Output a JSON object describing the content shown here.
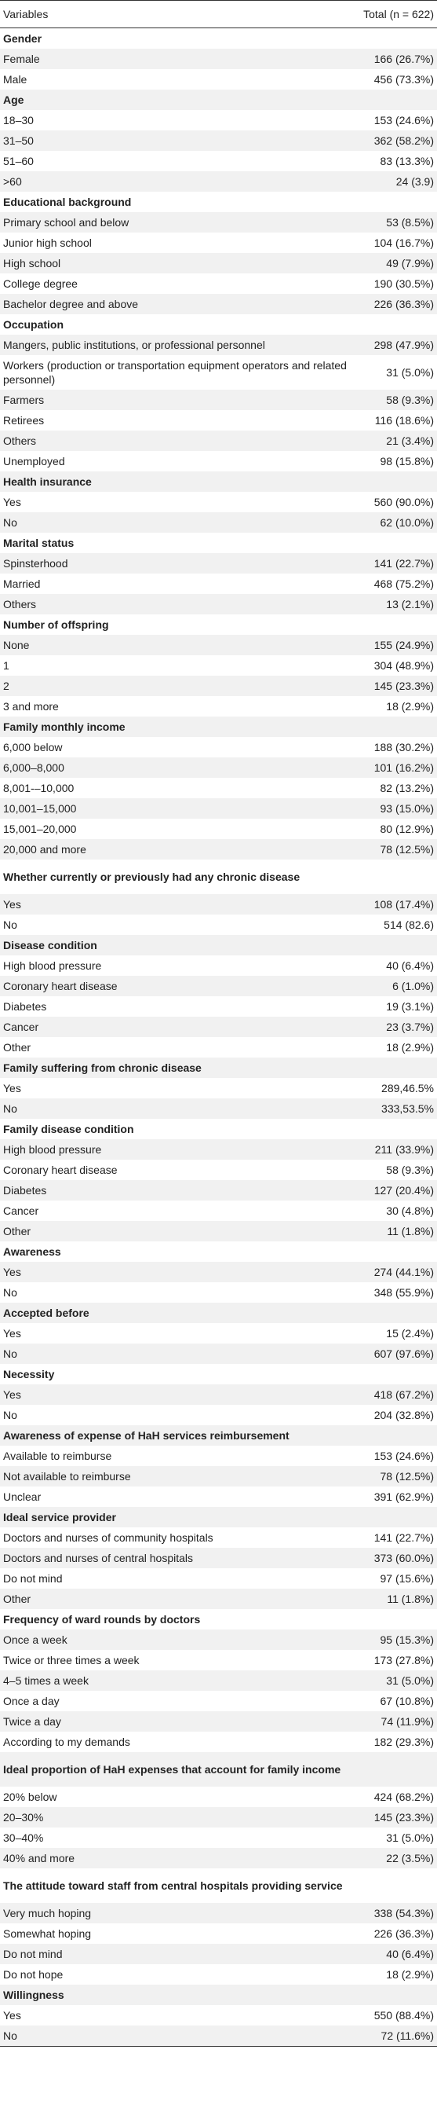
{
  "header": {
    "variables": "Variables",
    "total": "Total (n = 622)"
  },
  "rows": [
    {
      "label": "Gender",
      "value": "",
      "section": true
    },
    {
      "label": "Female",
      "value": "166 (26.7%)"
    },
    {
      "label": "Male",
      "value": "456 (73.3%)"
    },
    {
      "label": "Age",
      "value": "",
      "section": true
    },
    {
      "label": "18–30",
      "value": "153 (24.6%)"
    },
    {
      "label": "31–50",
      "value": "362 (58.2%)"
    },
    {
      "label": "51–60",
      "value": "83 (13.3%)"
    },
    {
      "label": ">60",
      "value": "24 (3.9)"
    },
    {
      "label": "Educational background",
      "value": "",
      "section": true
    },
    {
      "label": "Primary school and below",
      "value": "53 (8.5%)"
    },
    {
      "label": "Junior high school",
      "value": "104 (16.7%)"
    },
    {
      "label": "High school",
      "value": "49 (7.9%)"
    },
    {
      "label": "College degree",
      "value": "190 (30.5%)"
    },
    {
      "label": "Bachelor degree and above",
      "value": "226 (36.3%)"
    },
    {
      "label": "Occupation",
      "value": "",
      "section": true
    },
    {
      "label": "Mangers, public institutions, or professional personnel",
      "value": "298 (47.9%)"
    },
    {
      "label": "Workers (production or transportation equipment operators and related personnel)",
      "value": "31 (5.0%)",
      "tall": true
    },
    {
      "label": "Farmers",
      "value": "58 (9.3%)"
    },
    {
      "label": "Retirees",
      "value": "116 (18.6%)"
    },
    {
      "label": "Others",
      "value": "21 (3.4%)"
    },
    {
      "label": "Unemployed",
      "value": "98 (15.8%)"
    },
    {
      "label": "Health insurance",
      "value": "",
      "section": true
    },
    {
      "label": "Yes",
      "value": "560 (90.0%)"
    },
    {
      "label": "No",
      "value": "62 (10.0%)"
    },
    {
      "label": "Marital status",
      "value": "",
      "section": true
    },
    {
      "label": "Spinsterhood",
      "value": "141 (22.7%)"
    },
    {
      "label": "Married",
      "value": "468 (75.2%)"
    },
    {
      "label": "Others",
      "value": "13 (2.1%)"
    },
    {
      "label": "Number of offspring",
      "value": "",
      "section": true
    },
    {
      "label": "None",
      "value": "155 (24.9%)"
    },
    {
      "label": "1",
      "value": "304 (48.9%)"
    },
    {
      "label": "2",
      "value": "145 (23.3%)"
    },
    {
      "label": "3 and more",
      "value": "18 (2.9%)"
    },
    {
      "label": "Family monthly income",
      "value": "",
      "section": true
    },
    {
      "label": "6,000 below",
      "value": "188 (30.2%)"
    },
    {
      "label": "6,000–8,000",
      "value": "101 (16.2%)"
    },
    {
      "label": "8,001-–10,000",
      "value": "82 (13.2%)"
    },
    {
      "label": "10,001–15,000",
      "value": "93 (15.0%)"
    },
    {
      "label": "15,001–20,000",
      "value": "80 (12.9%)"
    },
    {
      "label": "20,000 and more",
      "value": "78 (12.5%)"
    },
    {
      "label": "Whether currently or previously had any chronic disease",
      "value": "",
      "section": true,
      "tall": true
    },
    {
      "label": "Yes",
      "value": "108 (17.4%)"
    },
    {
      "label": "No",
      "value": "514 (82.6)"
    },
    {
      "label": "Disease condition",
      "value": "",
      "section": true
    },
    {
      "label": "High blood pressure",
      "value": "40 (6.4%)"
    },
    {
      "label": "Coronary heart disease",
      "value": "6 (1.0%)"
    },
    {
      "label": "Diabetes",
      "value": "19 (3.1%)"
    },
    {
      "label": "Cancer",
      "value": "23 (3.7%)"
    },
    {
      "label": "Other",
      "value": "18 (2.9%)"
    },
    {
      "label": "Family suffering from chronic disease",
      "value": "",
      "section": true
    },
    {
      "label": "Yes",
      "value": "289,46.5%"
    },
    {
      "label": "No",
      "value": "333,53.5%"
    },
    {
      "label": "Family disease condition",
      "value": "",
      "section": true
    },
    {
      "label": "High blood pressure",
      "value": "211 (33.9%)"
    },
    {
      "label": "Coronary heart disease",
      "value": "58 (9.3%)"
    },
    {
      "label": "Diabetes",
      "value": "127 (20.4%)"
    },
    {
      "label": "Cancer",
      "value": "30 (4.8%)"
    },
    {
      "label": "Other",
      "value": "11 (1.8%)"
    },
    {
      "label": "Awareness",
      "value": "",
      "section": true
    },
    {
      "label": "Yes",
      "value": "274 (44.1%)"
    },
    {
      "label": "No",
      "value": "348 (55.9%)"
    },
    {
      "label": "Accepted before",
      "value": "",
      "section": true
    },
    {
      "label": "Yes",
      "value": "15 (2.4%)"
    },
    {
      "label": "No",
      "value": "607 (97.6%)"
    },
    {
      "label": "Necessity",
      "value": "",
      "section": true
    },
    {
      "label": "Yes",
      "value": "418 (67.2%)"
    },
    {
      "label": "No",
      "value": "204 (32.8%)"
    },
    {
      "label": "Awareness of expense of HaH services reimbursement",
      "value": "",
      "section": true
    },
    {
      "label": "Available to reimburse",
      "value": "153 (24.6%)"
    },
    {
      "label": "Not available to reimburse",
      "value": "78 (12.5%)"
    },
    {
      "label": "Unclear",
      "value": "391 (62.9%)"
    },
    {
      "label": "Ideal service provider",
      "value": "",
      "section": true
    },
    {
      "label": "Doctors and nurses of community hospitals",
      "value": "141 (22.7%)"
    },
    {
      "label": "Doctors and nurses of central hospitals",
      "value": "373 (60.0%)"
    },
    {
      "label": "Do not mind",
      "value": "97 (15.6%)"
    },
    {
      "label": "Other",
      "value": "11 (1.8%)"
    },
    {
      "label": "Frequency of ward rounds by doctors",
      "value": "",
      "section": true
    },
    {
      "label": "Once a week",
      "value": "95 (15.3%)"
    },
    {
      "label": "Twice or three times a week",
      "value": "173 (27.8%)"
    },
    {
      "label": "4–5 times a week",
      "value": "31 (5.0%)"
    },
    {
      "label": "Once a day",
      "value": "67 (10.8%)"
    },
    {
      "label": "Twice a day",
      "value": "74 (11.9%)"
    },
    {
      "label": "According to my demands",
      "value": "182 (29.3%)"
    },
    {
      "label": "Ideal proportion of HaH expenses that account for family income",
      "value": "",
      "section": true,
      "tall": true
    },
    {
      "label": "20% below",
      "value": "424 (68.2%)"
    },
    {
      "label": "20–30%",
      "value": "145 (23.3%)"
    },
    {
      "label": "30–40%",
      "value": "31 (5.0%)"
    },
    {
      "label": "40% and more",
      "value": "22 (3.5%)"
    },
    {
      "label": "The attitude toward staff from central hospitals providing service",
      "value": "",
      "section": true,
      "tall": true
    },
    {
      "label": "Very much hoping",
      "value": "338 (54.3%)"
    },
    {
      "label": "Somewhat hoping",
      "value": "226 (36.3%)"
    },
    {
      "label": "Do not mind",
      "value": "40 (6.4%)"
    },
    {
      "label": "Do not hope",
      "value": "18 (2.9%)"
    },
    {
      "label": "Willingness",
      "value": "",
      "section": true
    },
    {
      "label": "Yes",
      "value": "550 (88.4%)"
    },
    {
      "label": "No",
      "value": "72 (11.6%)"
    }
  ]
}
